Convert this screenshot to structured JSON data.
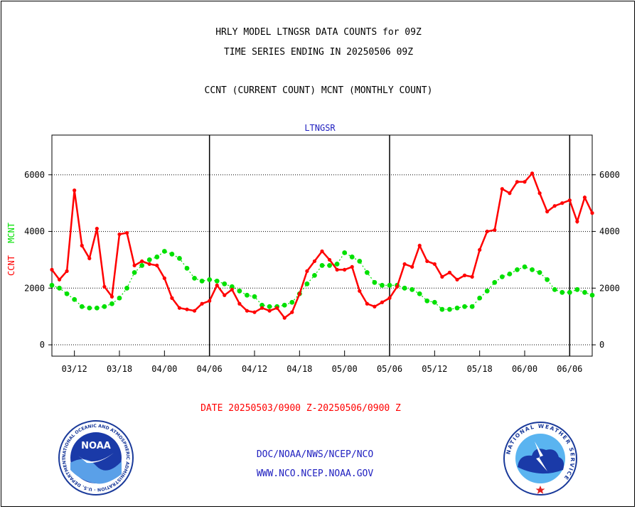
{
  "header": {
    "line1": "HRLY MODEL LTNGSR DATA COUNTS for 09Z",
    "line2": "TIME SERIES ENDING IN 20250506 09Z",
    "line3": "CCNT (CURRENT COUNT) MCNT (MONTHLY COUNT)"
  },
  "footer": {
    "date_range": "DATE 20250503/0900 Z-20250506/0900 Z",
    "org": "DOC/NOAA/NWS/NCEP/NCO",
    "url": "WWW.NCO.NCEP.NOAA.GOV"
  },
  "logos": {
    "noaa": {
      "center_text": "NOAA",
      "ring_text": "NATIONAL OCEANIC AND ATMOSPHERIC ADMINISTRATION · U.S. DEPARTMENT OF COMMERCE"
    },
    "nws": {
      "ring_text": "NATIONAL WEATHER SERVICE"
    }
  },
  "colors": {
    "ccnt": "#ff0000",
    "mcnt": "#00e000",
    "title": "#2020c0",
    "axis": "#000000"
  },
  "chart_data": {
    "type": "line",
    "title": "LTNGSR",
    "ylabel_left": [
      "CCNT",
      "MCNT"
    ],
    "y_ticks": [
      0,
      2000,
      4000,
      6000
    ],
    "ylim": [
      -400,
      7400
    ],
    "x_tick_labels": [
      "03/12",
      "03/18",
      "04/00",
      "04/06",
      "04/12",
      "04/18",
      "05/00",
      "05/06",
      "05/12",
      "05/18",
      "06/00",
      "06/06"
    ],
    "x_tick_steps": [
      3,
      9,
      15,
      21,
      27,
      33,
      39,
      45,
      51,
      57,
      63,
      69
    ],
    "day_boundaries": [
      21,
      45,
      69
    ],
    "xlim": [
      0,
      72
    ],
    "grid": "horizontal dotted",
    "series": [
      {
        "name": "CCNT",
        "values": [
          2650,
          2300,
          2600,
          5450,
          3500,
          3050,
          4100,
          2050,
          1700,
          3900,
          3950,
          2800,
          2950,
          2850,
          2800,
          2350,
          1650,
          1300,
          1250,
          1200,
          1450,
          1550,
          2100,
          1750,
          1950,
          1450,
          1200,
          1150,
          1300,
          1200,
          1300,
          950,
          1150,
          1800,
          2600,
          2950,
          3300,
          3000,
          2650,
          2650,
          2750,
          1900,
          1450,
          1350,
          1500,
          1650,
          2050,
          2850,
          2750,
          3500,
          2950,
          2850,
          2400,
          2550,
          2300,
          2450,
          2400,
          3350,
          4000,
          4050,
          5500,
          5350,
          5750,
          5750,
          6050,
          5350,
          4700,
          4900,
          5000,
          5100,
          4350,
          5200,
          4650
        ]
      },
      {
        "name": "MCNT",
        "values": [
          2100,
          2000,
          1800,
          1600,
          1350,
          1300,
          1300,
          1350,
          1450,
          1650,
          2000,
          2550,
          2800,
          3000,
          3100,
          3300,
          3200,
          3050,
          2700,
          2350,
          2250,
          2300,
          2250,
          2150,
          2050,
          1900,
          1750,
          1700,
          1400,
          1350,
          1350,
          1400,
          1500,
          1800,
          2150,
          2450,
          2800,
          2800,
          2850,
          3250,
          3100,
          2950,
          2550,
          2200,
          2100,
          2100,
          2100,
          2000,
          1950,
          1800,
          1550,
          1500,
          1250,
          1250,
          1300,
          1350,
          1350,
          1650,
          1900,
          2200,
          2400,
          2500,
          2650,
          2750,
          2650,
          2550,
          2300,
          1950,
          1850,
          1850,
          1950,
          1850,
          1750
        ]
      }
    ]
  }
}
